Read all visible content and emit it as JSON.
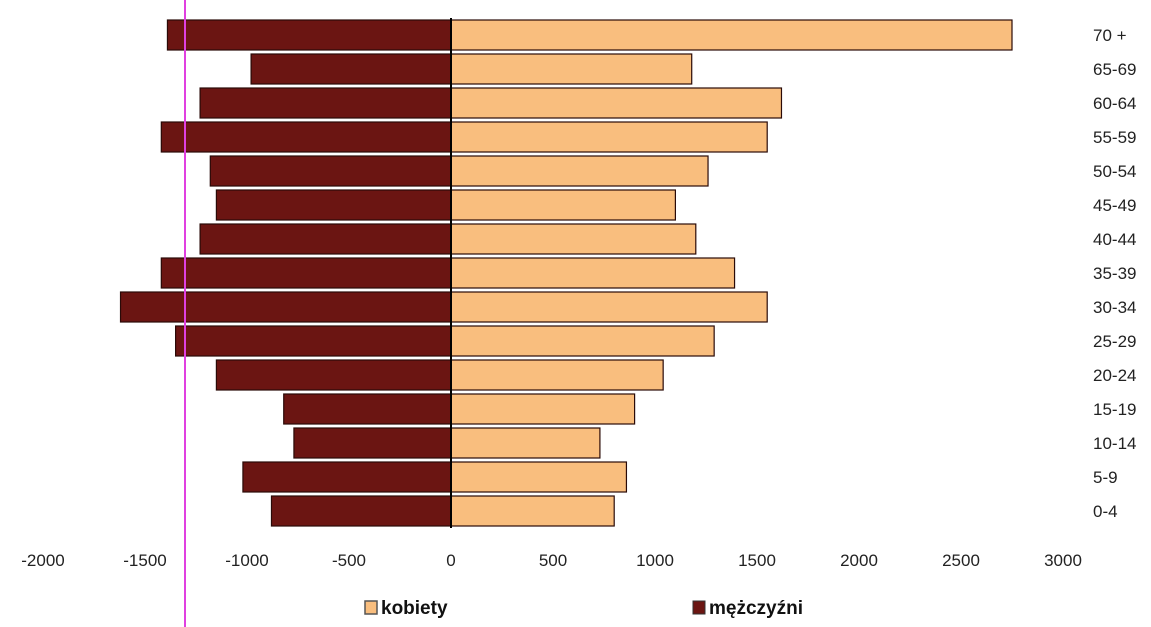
{
  "chart_data": {
    "type": "bar",
    "orientation": "horizontal",
    "categories": [
      "70 +",
      "65-69",
      "60-64",
      "55-59",
      "50-54",
      "45-49",
      "40-44",
      "35-39",
      "30-34",
      "25-29",
      "20-24",
      "15-19",
      "10-14",
      "5-9",
      "0-4"
    ],
    "series": [
      {
        "name": "kobiety",
        "color": "#F9BE7E",
        "values": [
          2750,
          1180,
          1620,
          1550,
          1260,
          1100,
          1200,
          1390,
          1550,
          1290,
          1040,
          900,
          730,
          860,
          800
        ]
      },
      {
        "name": "mężczyźni",
        "color": "#6B1512",
        "values": [
          -1390,
          -980,
          -1230,
          -1420,
          -1180,
          -1150,
          -1230,
          -1420,
          -1620,
          -1350,
          -1150,
          -820,
          -770,
          -1020,
          -880
        ]
      }
    ],
    "xlim": [
      -2000,
      3000
    ],
    "x_ticks": [
      "-2000",
      "-1500",
      "-1000",
      "-500",
      "0",
      "500",
      "1000",
      "1500",
      "2000",
      "2500",
      "3000"
    ],
    "grid": false,
    "legend_position": "bottom",
    "title": "",
    "xlabel": "",
    "ylabel": ""
  }
}
